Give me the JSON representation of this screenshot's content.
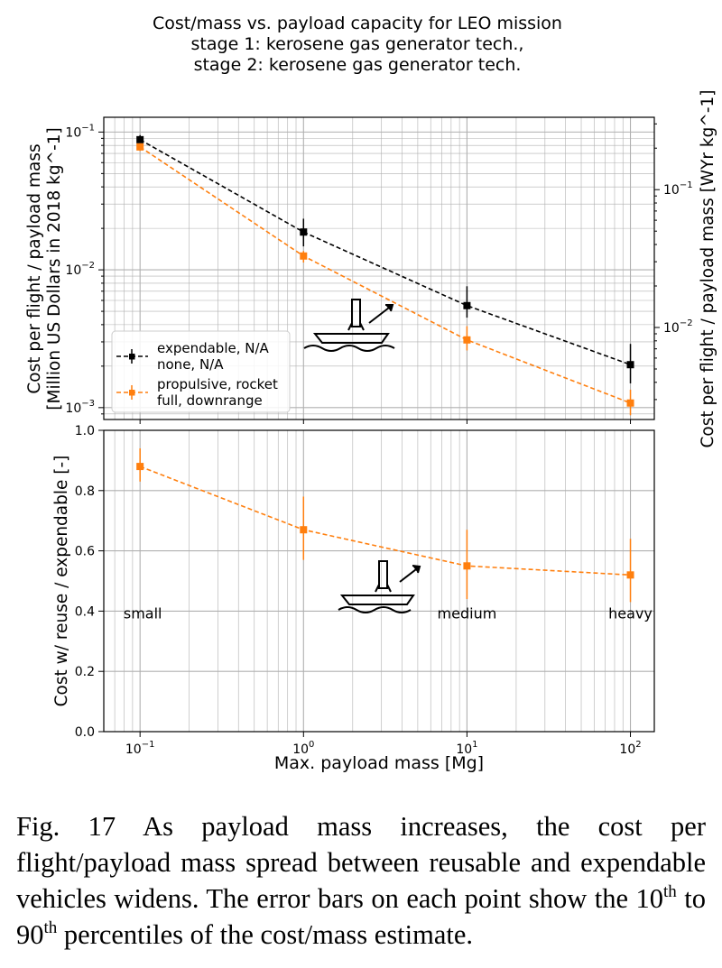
{
  "figure": {
    "title_lines": [
      "Cost/mass vs. payload capacity for LEO mission",
      "stage 1: kerosene gas generator tech.,",
      "stage 2: kerosene gas generator tech."
    ],
    "xlabel": "Max. payload mass [Mg]",
    "x_tick_labels": [
      {
        "base": "10",
        "exp": "−1"
      },
      {
        "base": "10",
        "exp": "0"
      },
      {
        "base": "10",
        "exp": "1"
      },
      {
        "base": "10",
        "exp": "2"
      }
    ],
    "categories": [
      "small",
      "medium",
      "heavy"
    ],
    "colors": {
      "expendable": "#000000",
      "reuse": "#ff7f0e",
      "grid": "#b0b0b0"
    },
    "icon": "barge-landing-icon"
  },
  "chart_data": [
    {
      "type": "line",
      "name": "cost-per-mass",
      "x_scale": "log",
      "y_scale": "log",
      "xlim": [
        0.06,
        140
      ],
      "ylim": [
        0.00082,
        0.128
      ],
      "ylabel_lines": [
        "Cost per flight / payload mass",
        "[Million US Dollars in 2018 kg^-1]"
      ],
      "y_tick_labels": [
        {
          "value": 0.1,
          "base": "10",
          "exp": "−1"
        },
        {
          "value": 0.01,
          "base": "10",
          "exp": "−2"
        },
        {
          "value": 0.001,
          "base": "10",
          "exp": "−3"
        }
      ],
      "secondary_y": {
        "label": "Cost per flight / payload mass [WYr kg^-1]",
        "ylim": [
          0.00215,
          0.335
        ],
        "tick_labels": [
          {
            "value": 0.1,
            "base": "10",
            "exp": "−1"
          },
          {
            "value": 0.01,
            "base": "10",
            "exp": "−2"
          }
        ]
      },
      "legend": {
        "placement": "lower-left"
      },
      "grid": true,
      "series": [
        {
          "name": "expendable, N/A\nnone, N/A",
          "legend_lines": [
            "expendable, N/A",
            "none, N/A"
          ],
          "color": "#000000",
          "marker": "square",
          "linestyle": "dashed",
          "x": [
            0.1,
            1,
            10,
            100
          ],
          "y": [
            0.088,
            0.0188,
            0.0055,
            0.00205
          ],
          "err_low": [
            0.081,
            0.0148,
            0.0045,
            0.0015
          ],
          "err_high": [
            0.095,
            0.0235,
            0.0076,
            0.0029
          ]
        },
        {
          "name": "propulsive, rocket\nfull, downrange",
          "legend_lines": [
            "propulsive, rocket",
            "full, downrange"
          ],
          "color": "#ff7f0e",
          "marker": "square",
          "linestyle": "dashed",
          "x": [
            0.1,
            1,
            10,
            100
          ],
          "y": [
            0.078,
            0.0126,
            0.0031,
            0.00108
          ],
          "err_low": [
            0.073,
            0.0113,
            0.0026,
            0.00088
          ],
          "err_high": [
            0.083,
            0.0137,
            0.0039,
            0.00135
          ]
        }
      ]
    },
    {
      "type": "line",
      "name": "cost-ratio",
      "x_scale": "log",
      "y_scale": "linear",
      "xlim": [
        0.06,
        140
      ],
      "ylim": [
        0,
        1.0
      ],
      "ylabel": "Cost w/ reuse / expendable [-]",
      "y_ticks": [
        0.0,
        0.2,
        0.4,
        0.6,
        0.8,
        1.0
      ],
      "y_tick_labels": [
        "0.0",
        "0.2",
        "0.4",
        "0.6",
        "0.8",
        "1.0"
      ],
      "grid": true,
      "series": [
        {
          "color": "#ff7f0e",
          "marker": "square",
          "linestyle": "dashed",
          "x": [
            0.1,
            1,
            10,
            100
          ],
          "y": [
            0.88,
            0.67,
            0.55,
            0.52
          ],
          "err_low": [
            0.83,
            0.57,
            0.44,
            0.43
          ],
          "err_high": [
            0.94,
            0.78,
            0.67,
            0.64
          ]
        }
      ],
      "annotations": [
        {
          "text": "small",
          "x": 0.1,
          "y": 0.39
        },
        {
          "text": "medium",
          "x": 10,
          "y": 0.39
        },
        {
          "text": "heavy",
          "x": 100,
          "y": 0.39
        }
      ]
    }
  ],
  "caption": {
    "label": "Fig. 17",
    "before_sup1": "As payload mass increases, the cost per flight/payload mass spread between reusable and expendable vehicles widens. The error bars on each point show the 10",
    "sup1": "th",
    "middle": " to 90",
    "sup2": "th",
    "after_sup2": " percentiles of the cost/mass estimate."
  }
}
